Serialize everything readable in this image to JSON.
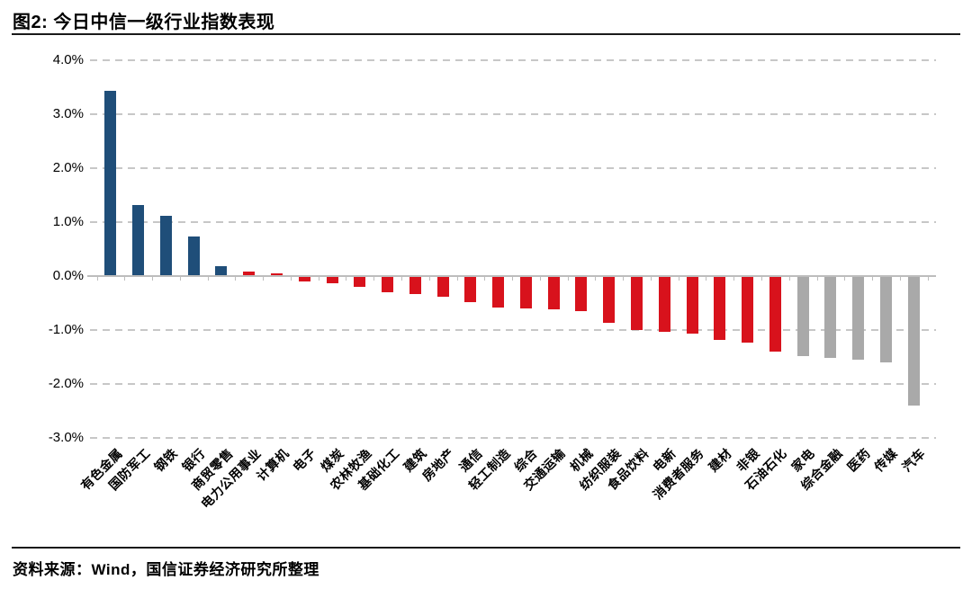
{
  "figure": {
    "title": "图2: 今日中信一级行业指数表现",
    "source_note": "资料来源：Wind，国信证券经济研究所整理"
  },
  "chart_data": {
    "type": "bar",
    "title": "今日中信一级行业指数表现",
    "unit": "%",
    "xlabel": "",
    "ylabel": "",
    "ylim": [
      -3.0,
      4.0
    ],
    "grid": "horizontal-dashed",
    "legend": "none",
    "y_ticks": [
      {
        "label": "4.0%",
        "value": 4.0
      },
      {
        "label": "3.0%",
        "value": 3.0
      },
      {
        "label": "2.0%",
        "value": 2.0
      },
      {
        "label": "1.0%",
        "value": 1.0
      },
      {
        "label": "0.0%",
        "value": 0.0
      },
      {
        "label": "-1.0%",
        "value": -1.0
      },
      {
        "label": "-2.0%",
        "value": -2.0
      },
      {
        "label": "-3.0%",
        "value": -3.0
      }
    ],
    "categories": [
      "有色金属",
      "国防军工",
      "钢铁",
      "银行",
      "商贸零售",
      "电力公用事业",
      "计算机",
      "电子",
      "煤炭",
      "农林牧渔",
      "基础化工",
      "建筑",
      "房地产",
      "通信",
      "轻工制造",
      "综合",
      "交通运输",
      "机械",
      "纺织服装",
      "食品饮料",
      "电新",
      "消费者服务",
      "建材",
      "非银",
      "石油石化",
      "家电",
      "综合金融",
      "医药",
      "传媒",
      "汽车"
    ],
    "values": [
      3.42,
      1.3,
      1.1,
      0.71,
      0.17,
      0.06,
      0.04,
      -0.08,
      -0.11,
      -0.18,
      -0.28,
      -0.31,
      -0.36,
      -0.46,
      -0.57,
      -0.58,
      -0.6,
      -0.63,
      -0.85,
      -0.98,
      -1.02,
      -1.05,
      -1.17,
      -1.21,
      -1.38,
      -1.47,
      -1.5,
      -1.53,
      -1.58,
      -2.38
    ],
    "bar_colors": [
      "#1F4E79",
      "#1F4E79",
      "#1F4E79",
      "#1F4E79",
      "#1F4E79",
      "#D8121C",
      "#D8121C",
      "#D8121C",
      "#D8121C",
      "#D8121C",
      "#D8121C",
      "#D8121C",
      "#D8121C",
      "#D8121C",
      "#D8121C",
      "#D8121C",
      "#D8121C",
      "#D8121C",
      "#D8121C",
      "#D8121C",
      "#D8121C",
      "#D8121C",
      "#D8121C",
      "#D8121C",
      "#D8121C",
      "#A9A9A9",
      "#A9A9A9",
      "#A9A9A9",
      "#A9A9A9",
      "#A9A9A9"
    ],
    "palette": {
      "positive_blue": "#1F4E79",
      "negative_red": "#D8121C",
      "neutral_gray": "#A9A9A9",
      "gridline": "#C7C7C7",
      "axis": "#BDBDBD"
    }
  }
}
